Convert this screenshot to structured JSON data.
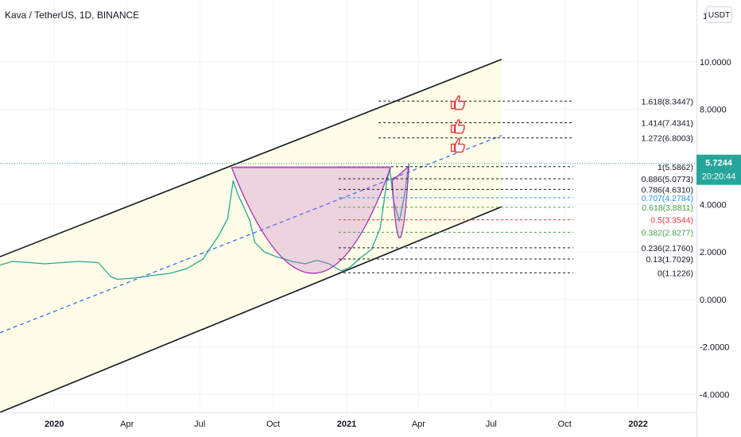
{
  "header": {
    "symbol_title": "Kava / TetherUS, 1D, BINANCE"
  },
  "currency_button": "USDT",
  "price_tag": {
    "price": "5.7244",
    "countdown": "20:20:44",
    "color": "#26a69a"
  },
  "chart_data": {
    "type": "line",
    "title": "Kava / TetherUS, 1D, BINANCE",
    "y_axis": {
      "ticks": [
        {
          "value": 10,
          "label": "10.0000"
        },
        {
          "value": 8,
          "label": "8.0000"
        },
        {
          "value": 4,
          "label": "4.0000"
        },
        {
          "value": 2,
          "label": "2.0000"
        },
        {
          "value": 0,
          "label": "0.0000"
        },
        {
          "value": -2,
          "label": "-2.0000"
        },
        {
          "value": -4,
          "label": "-4.0000"
        }
      ],
      "range": [
        -4.75,
        12.6
      ],
      "top_partial_label": "1"
    },
    "x_axis": {
      "ticks": [
        {
          "date": "2020-01-01",
          "label": "2020",
          "bold": true
        },
        {
          "date": "2020-04-01",
          "label": "Apr",
          "bold": false
        },
        {
          "date": "2020-07-01",
          "label": "Jul",
          "bold": false
        },
        {
          "date": "2020-10-01",
          "label": "Oct",
          "bold": false
        },
        {
          "date": "2021-01-01",
          "label": "2021",
          "bold": true
        },
        {
          "date": "2021-04-01",
          "label": "Apr",
          "bold": false
        },
        {
          "date": "2021-07-01",
          "label": "Jul",
          "bold": false
        },
        {
          "date": "2021-10-01",
          "label": "Oct",
          "bold": false
        },
        {
          "date": "2022-01-01",
          "label": "2022",
          "bold": true
        }
      ],
      "range": [
        "2019-10-25",
        "2022-03-15"
      ]
    },
    "series": [
      {
        "values": [
          [
            "2019-10-25",
            1.45
          ],
          [
            "2019-11-10",
            1.6
          ],
          [
            "2019-12-01",
            1.55
          ],
          [
            "2019-12-20",
            1.5
          ],
          [
            "2020-01-10",
            1.55
          ],
          [
            "2020-02-01",
            1.6
          ],
          [
            "2020-02-25",
            1.55
          ],
          [
            "2020-03-12",
            0.95
          ],
          [
            "2020-03-20",
            0.85
          ],
          [
            "2020-04-10",
            0.9
          ],
          [
            "2020-05-01",
            1.0
          ],
          [
            "2020-05-25",
            1.1
          ],
          [
            "2020-06-15",
            1.3
          ],
          [
            "2020-07-05",
            1.7
          ],
          [
            "2020-07-15",
            2.2
          ],
          [
            "2020-07-25",
            2.7
          ],
          [
            "2020-08-05",
            3.4
          ],
          [
            "2020-08-12",
            5.0
          ],
          [
            "2020-08-18",
            4.4
          ],
          [
            "2020-08-25",
            3.9
          ],
          [
            "2020-09-02",
            3.3
          ],
          [
            "2020-09-08",
            2.4
          ],
          [
            "2020-09-20",
            2.0
          ],
          [
            "2020-10-05",
            1.8
          ],
          [
            "2020-10-25",
            1.6
          ],
          [
            "2020-11-10",
            1.5
          ],
          [
            "2020-11-25",
            1.65
          ],
          [
            "2020-12-10",
            1.5
          ],
          [
            "2020-12-25",
            1.2
          ],
          [
            "2021-01-05",
            1.35
          ],
          [
            "2021-01-20",
            1.8
          ],
          [
            "2021-02-01",
            2.1
          ],
          [
            "2021-02-12",
            3.0
          ],
          [
            "2021-02-20",
            4.9
          ],
          [
            "2021-02-24",
            5.5
          ],
          [
            "2021-03-01",
            4.1
          ],
          [
            "2021-03-08",
            3.3
          ],
          [
            "2021-03-14",
            4.3
          ],
          [
            "2021-03-20",
            5.7244
          ]
        ]
      }
    ],
    "fibonacci": {
      "start_date": "2020-08-14",
      "anchor_date": "2020-12-22",
      "end_date": "2021-07-14",
      "levels": [
        {
          "ratio": "1.618",
          "price": "8.3447",
          "value": 8.3447,
          "color": "#131722",
          "shown": false
        },
        {
          "ratio": "1.414",
          "price": "7.4341",
          "value": 7.4341,
          "color": "#131722",
          "shown": false
        },
        {
          "ratio": "1.272",
          "price": "6.8003",
          "value": 6.8003,
          "color": "#131722",
          "shown": false
        },
        {
          "ratio": "1",
          "price": "5.5862",
          "value": 5.5862,
          "color": "#131722",
          "shown": true
        },
        {
          "ratio": "0.886",
          "price": "5.0773",
          "value": 5.0773,
          "color": "#131722",
          "shown": true
        },
        {
          "ratio": "0.786",
          "price": "4.6310",
          "value": 4.631,
          "color": "#131722",
          "shown": true
        },
        {
          "ratio": "0.707",
          "price": "4.2784",
          "value": 4.2784,
          "color": "#2196f3",
          "shown": true
        },
        {
          "ratio": "0.618",
          "price": "3.8811",
          "value": 3.8811,
          "color": "#43a047",
          "shown": true
        },
        {
          "ratio": "0.5",
          "price": "3.3544",
          "value": 3.3544,
          "color": "#e53935",
          "shown": true
        },
        {
          "ratio": "0.382",
          "price": "2.8277",
          "value": 2.8277,
          "color": "#43a047",
          "shown": true
        },
        {
          "ratio": "0.236",
          "price": "2.1760",
          "value": 2.176,
          "color": "#131722",
          "shown": true
        },
        {
          "ratio": "0.13",
          "price": "1.7029",
          "value": 1.7029,
          "color": "#131722",
          "shown": true
        },
        {
          "ratio": "0",
          "price": "1.1226",
          "value": 1.1226,
          "color": "#131722",
          "shown": true
        }
      ]
    },
    "channel": {
      "upper": [
        [
          "2019-10-25",
          1.8
        ],
        [
          "2021-07-14",
          10.1
        ]
      ],
      "lower": [
        [
          "2019-10-25",
          -4.75
        ],
        [
          "2021-07-14",
          3.9
        ]
      ],
      "mid": [
        [
          "2019-10-25",
          -1.4
        ],
        [
          "2021-07-14",
          6.9
        ]
      ],
      "fill_color": "#fffde7"
    },
    "cup": {
      "rim_left": [
        "2020-08-10",
        5.55
      ],
      "rim_right": [
        "2021-02-25",
        5.55
      ],
      "bottom": [
        "2020-11-20",
        1.1
      ],
      "color": "#9c27b0"
    },
    "handle": {
      "rim_left": [
        "2021-02-27",
        5.0
      ],
      "rim_right": [
        "2021-03-20",
        5.6
      ],
      "bottom": [
        "2021-03-09",
        2.6
      ]
    },
    "icons": [
      {
        "name": "thumbs-up-icon",
        "date": "2021-05-19",
        "value": 8.3
      },
      {
        "name": "thumbs-up-icon",
        "date": "2021-05-19",
        "value": 7.3
      },
      {
        "name": "thumbs-up-icon",
        "date": "2021-05-19",
        "value": 6.5
      }
    ],
    "grid": true
  }
}
